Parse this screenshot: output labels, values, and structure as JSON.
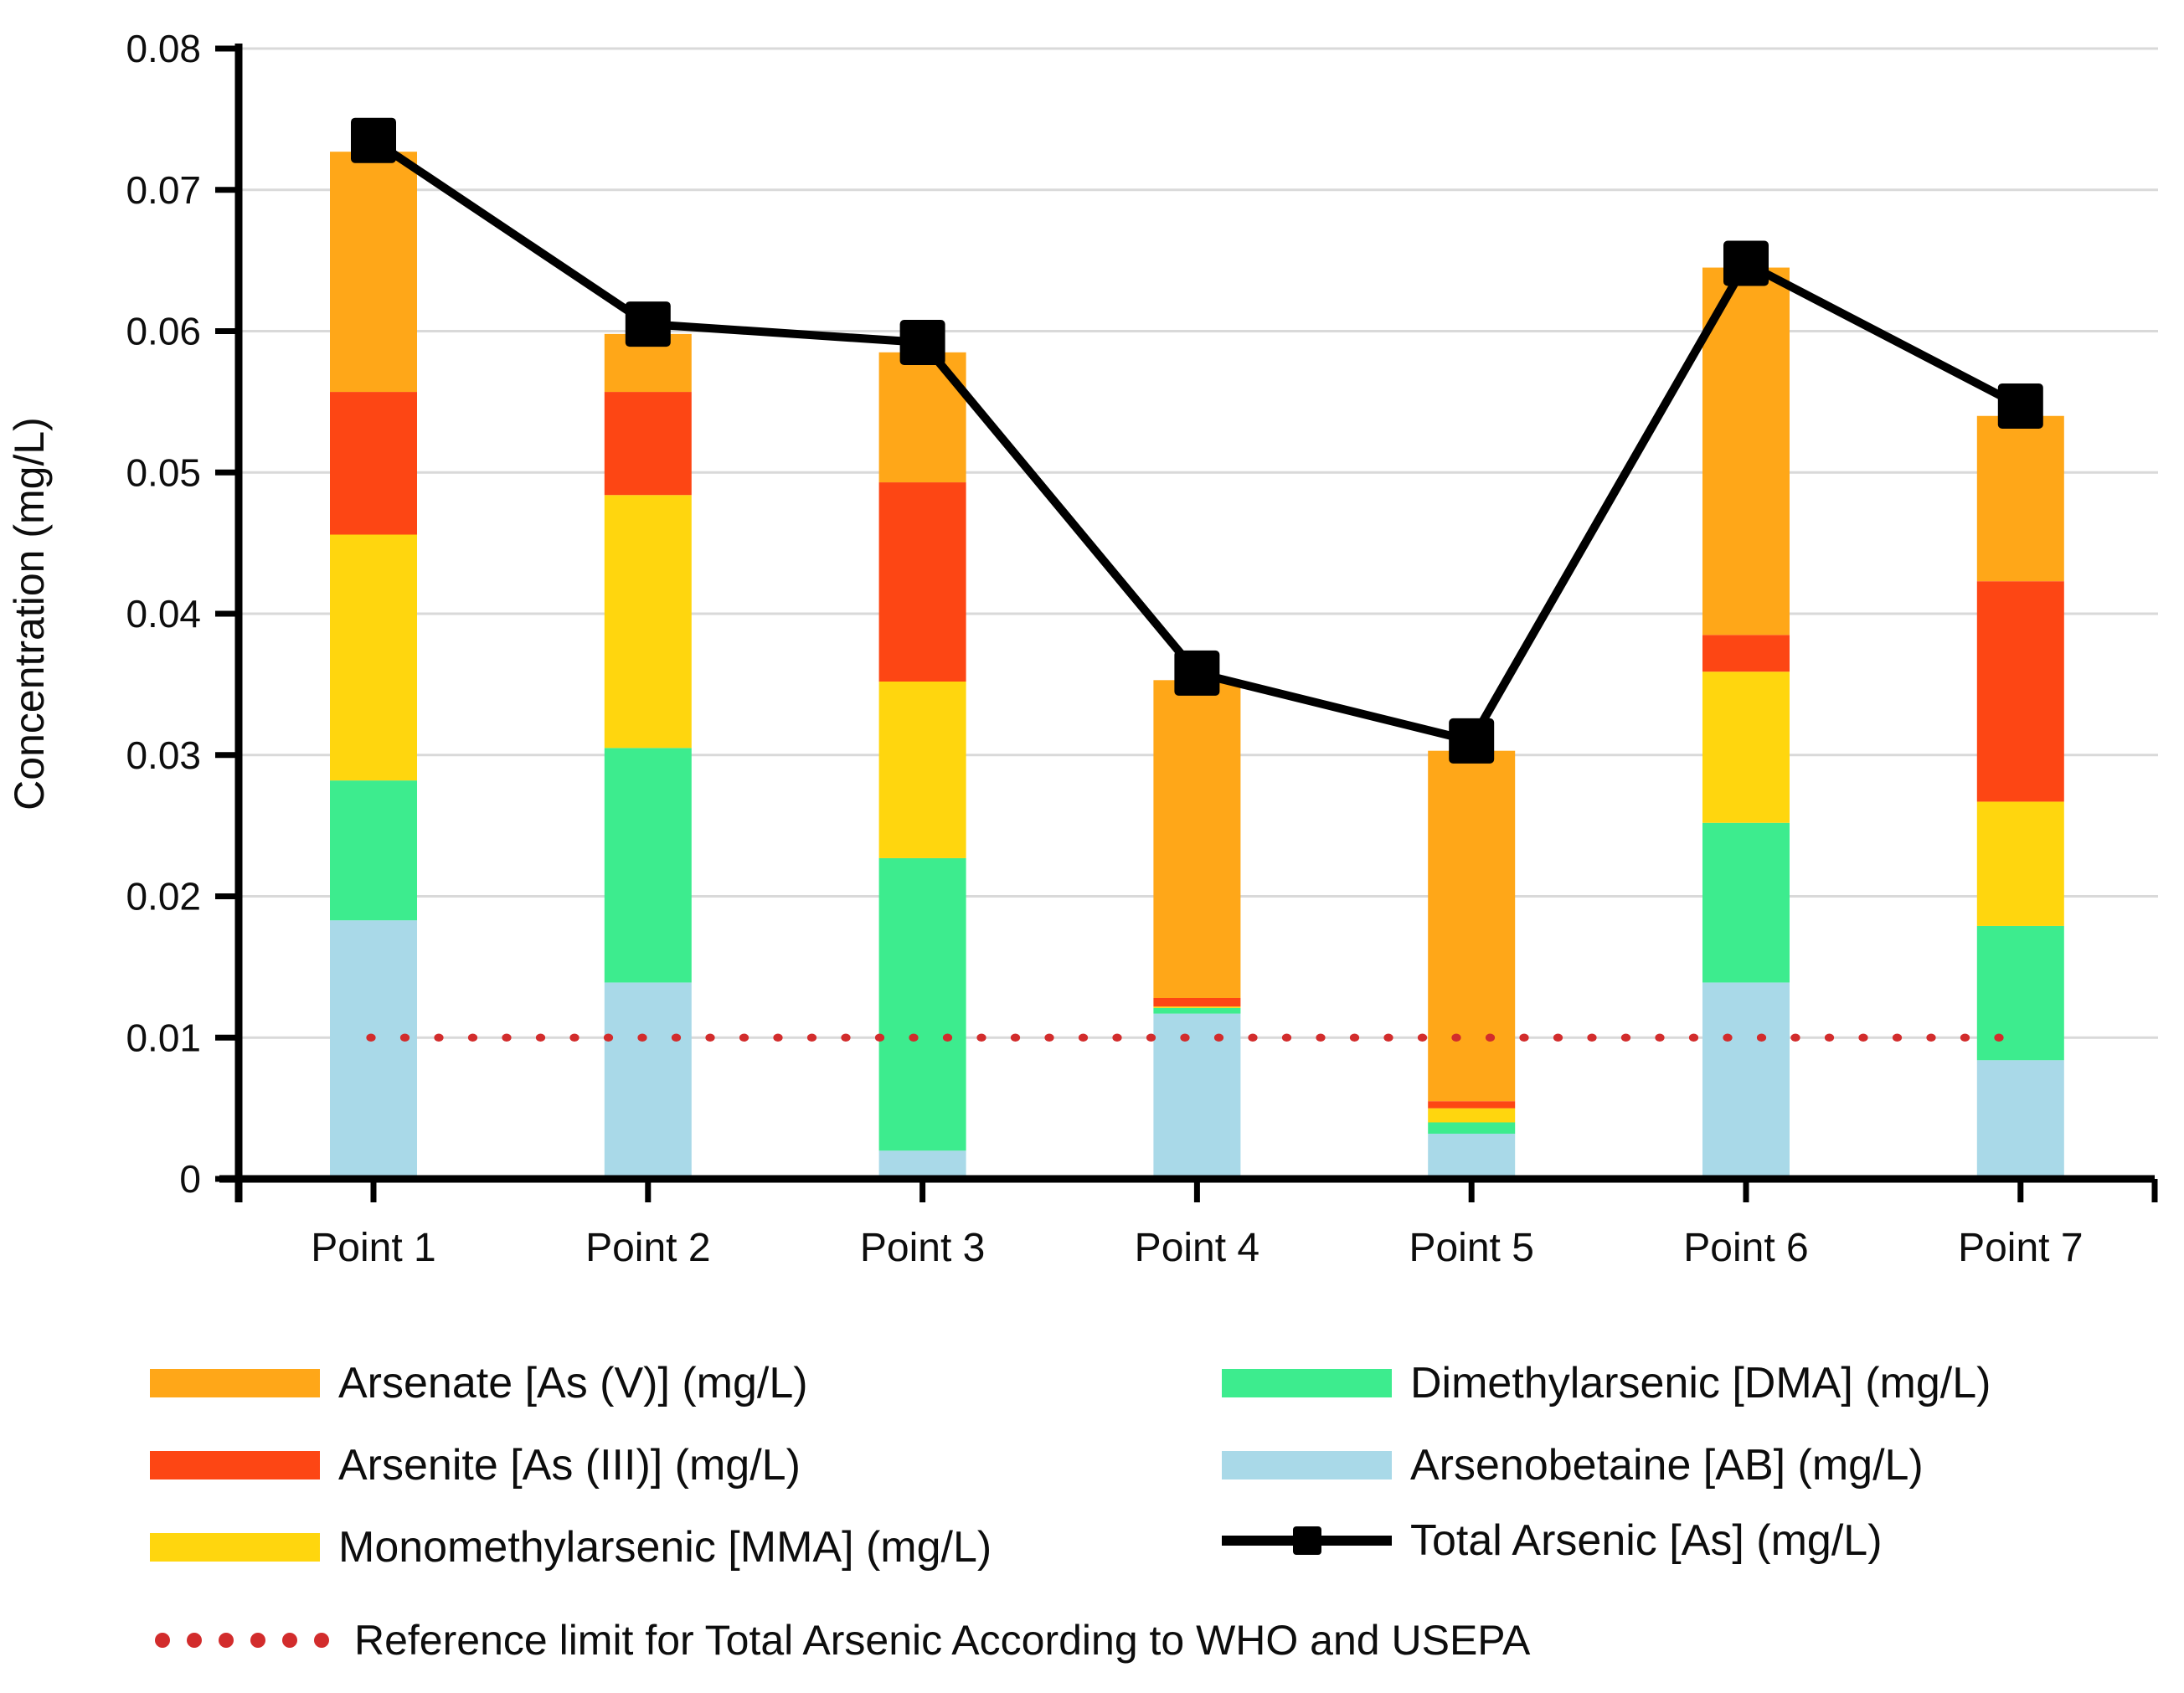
{
  "chart_data": {
    "type": "bar",
    "subtype": "stacked-bar-with-line-overlay",
    "title": "",
    "ylabel": "Concentration (mg/L)",
    "xlabel": "",
    "ylim": [
      0,
      0.08
    ],
    "ytick_step": 0.01,
    "ytick_labels": [
      "0",
      "0.01",
      "0.02",
      "0.03",
      "0.04",
      "0.05",
      "0.06",
      "0.07",
      "0.08"
    ],
    "grid": true,
    "legend_position": "bottom",
    "categories": [
      "Point 1",
      "Point 2",
      "Point 3",
      "Point 4",
      "Point 5",
      "Point 6",
      "Point 7"
    ],
    "bar_series": [
      {
        "name": "Arsenobetaine [AB] (mg/L)",
        "color": "#A9D9E8",
        "values": [
          0.0183,
          0.0139,
          0.002,
          0.0117,
          0.0032,
          0.0139,
          0.0084
        ]
      },
      {
        "name": "Dimethylarsenic [DMA] (mg/L)",
        "color": "#3DEC8E",
        "values": [
          0.0099,
          0.0166,
          0.0207,
          0.0004,
          0.0008,
          0.0113,
          0.0095
        ]
      },
      {
        "name": "Monomethylarsenic [MMA] (mg/L)",
        "color": "#FFD60E",
        "values": [
          0.0174,
          0.0179,
          0.0125,
          0.0001,
          0.001,
          0.0107,
          0.0088
        ]
      },
      {
        "name": "Arsenite [As (III)] (mg/L)",
        "color": "#FD4614",
        "values": [
          0.0101,
          0.0073,
          0.0141,
          0.0006,
          0.0005,
          0.0026,
          0.0156
        ]
      },
      {
        "name": "Arsenate [As (V)] (mg/L)",
        "color": "#FFA718",
        "values": [
          0.017,
          0.0041,
          0.0092,
          0.0225,
          0.0248,
          0.026,
          0.0117
        ]
      }
    ],
    "line_series": {
      "name": "Total Arsenic [As] (mg/L)",
      "color": "#000000",
      "marker": "square",
      "values": [
        0.0735,
        0.0605,
        0.0592,
        0.0358,
        0.031,
        0.0648,
        0.0547
      ]
    },
    "reference_line": {
      "label": "Reference limit for Total Arsenic According to WHO and USEPA",
      "value": 0.01,
      "color": "#D22C2C",
      "style": "dotted"
    }
  },
  "legend": {
    "left_column": [
      {
        "swatch": "#FFA718",
        "label": "Arsenate [As (V)] (mg/L)"
      },
      {
        "swatch": "#FD4614",
        "label": "Arsenite [As (III)] (mg/L)"
      },
      {
        "swatch": "#FFD60E",
        "label": "Monomethylarsenic [MMA] (mg/L)"
      }
    ],
    "right_column": [
      {
        "swatch": "#3DEC8E",
        "label": "Dimethylarsenic [DMA] (mg/L)"
      },
      {
        "swatch": "#A9D9E8",
        "label": "Arsenobetaine [AB] (mg/L)"
      },
      {
        "swatch": "line-marker",
        "label": "Total Arsenic [As] (mg/L)"
      }
    ],
    "reference": {
      "label": "Reference limit for Total Arsenic According to WHO and USEPA"
    }
  }
}
